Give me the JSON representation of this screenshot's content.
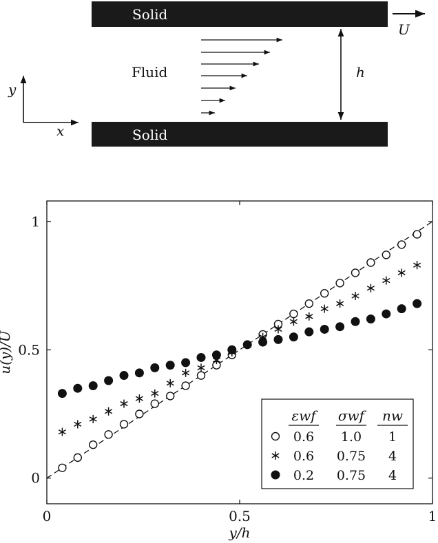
{
  "schematic": {
    "top_wall_label": "Solid",
    "bottom_wall_label": "Solid",
    "fluid_label": "Fluid",
    "velocity_label": "U",
    "gap_label": "h",
    "axis_y_label": "y",
    "axis_x_label": "x"
  },
  "chart_data": {
    "type": "scatter",
    "xlabel": "y/h",
    "ylabel": "u(y)/U",
    "xlim": [
      0,
      1
    ],
    "ylim": [
      -0.1,
      1.08
    ],
    "xticks": [
      0,
      0.5,
      1
    ],
    "xtick_labels": [
      "0",
      "0.5",
      "1"
    ],
    "yticks": [
      0,
      0.5,
      1
    ],
    "ytick_labels": [
      "0",
      "0.5",
      "1"
    ],
    "grid": false,
    "legend_position": "bottom-right",
    "legend": {
      "headers": [
        "εwf",
        "σwf",
        "nw"
      ],
      "rows": [
        {
          "marker": "open-circle",
          "values": [
            "0.6",
            "1.0",
            "1"
          ]
        },
        {
          "marker": "asterisk",
          "values": [
            "0.6",
            "0.75",
            "4"
          ]
        },
        {
          "marker": "filled-circle",
          "values": [
            "0.2",
            "0.75",
            "4"
          ]
        }
      ]
    },
    "reference_line": {
      "style": "dashed",
      "x": [
        0,
        1
      ],
      "y": [
        0,
        1
      ]
    },
    "series": [
      {
        "marker": "open-circle",
        "x": [
          0.04,
          0.08,
          0.12,
          0.16,
          0.2,
          0.24,
          0.28,
          0.32,
          0.36,
          0.4,
          0.44,
          0.48,
          0.52,
          0.56,
          0.6,
          0.64,
          0.68,
          0.72,
          0.76,
          0.8,
          0.84,
          0.88,
          0.92,
          0.96
        ],
        "y": [
          0.04,
          0.08,
          0.13,
          0.17,
          0.21,
          0.25,
          0.29,
          0.32,
          0.36,
          0.4,
          0.44,
          0.48,
          0.52,
          0.56,
          0.6,
          0.64,
          0.68,
          0.72,
          0.76,
          0.8,
          0.84,
          0.87,
          0.91,
          0.95
        ]
      },
      {
        "marker": "asterisk",
        "x": [
          0.04,
          0.08,
          0.12,
          0.16,
          0.2,
          0.24,
          0.28,
          0.32,
          0.36,
          0.4,
          0.44,
          0.48,
          0.52,
          0.56,
          0.6,
          0.64,
          0.68,
          0.72,
          0.76,
          0.8,
          0.84,
          0.88,
          0.92,
          0.96
        ],
        "y": [
          0.18,
          0.21,
          0.23,
          0.26,
          0.29,
          0.31,
          0.33,
          0.37,
          0.41,
          0.43,
          0.46,
          0.49,
          0.52,
          0.55,
          0.58,
          0.61,
          0.63,
          0.66,
          0.68,
          0.71,
          0.74,
          0.77,
          0.8,
          0.83
        ]
      },
      {
        "marker": "filled-circle",
        "x": [
          0.04,
          0.08,
          0.12,
          0.16,
          0.2,
          0.24,
          0.28,
          0.32,
          0.36,
          0.4,
          0.44,
          0.48,
          0.52,
          0.56,
          0.6,
          0.64,
          0.68,
          0.72,
          0.76,
          0.8,
          0.84,
          0.88,
          0.92,
          0.96
        ],
        "y": [
          0.33,
          0.35,
          0.36,
          0.38,
          0.4,
          0.41,
          0.43,
          0.44,
          0.45,
          0.47,
          0.48,
          0.5,
          0.52,
          0.53,
          0.54,
          0.55,
          0.57,
          0.58,
          0.59,
          0.61,
          0.62,
          0.64,
          0.66,
          0.68
        ]
      }
    ]
  }
}
